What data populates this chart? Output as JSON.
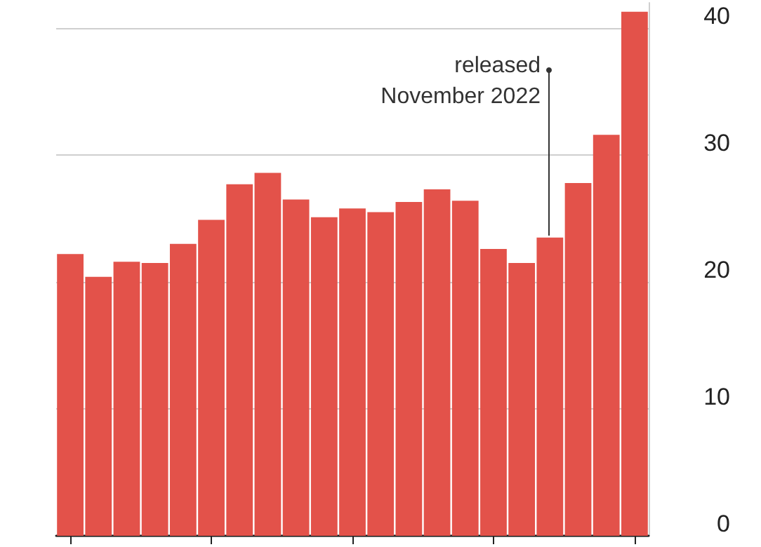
{
  "chart_data": {
    "type": "bar",
    "categories": [
      null,
      null,
      null,
      null,
      null,
      null,
      null,
      null,
      null,
      null,
      null,
      null,
      null,
      null,
      null,
      null,
      null,
      null,
      null,
      null,
      null
    ],
    "values": [
      22.2,
      20.4,
      21.6,
      21.5,
      23.0,
      24.9,
      27.7,
      28.6,
      26.5,
      25.1,
      25.8,
      25.5,
      26.3,
      27.3,
      26.4,
      22.6,
      21.5,
      23.5,
      27.8,
      31.6,
      41.3
    ],
    "color": "#e3524a",
    "ylim": [
      0,
      42
    ],
    "yticks": [
      0,
      10,
      20,
      30,
      40
    ],
    "grid": "y",
    "annotations": [
      "released\nNovember 2022"
    ]
  }
}
